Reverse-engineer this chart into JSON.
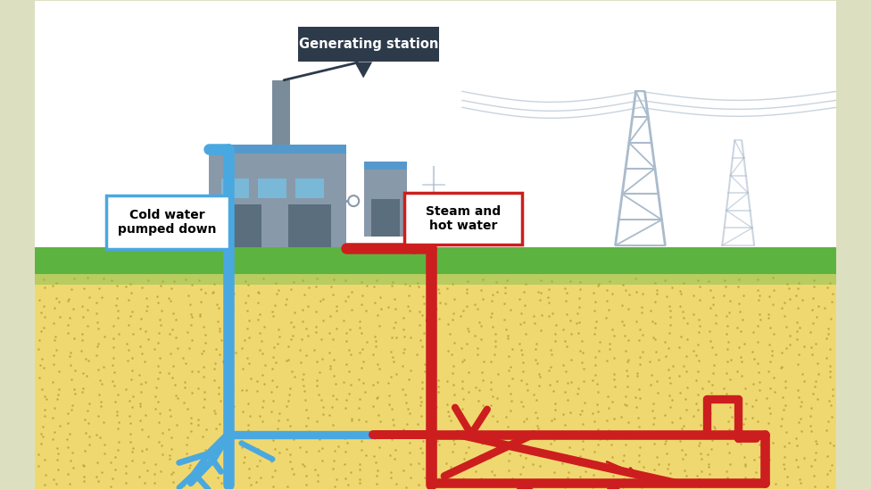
{
  "bg_outer": "#dde0c0",
  "bg_inner": "#ffffff",
  "sky_color": "#ffffff",
  "grass_color": "#5db340",
  "grass_light_color": "#b8cc60",
  "ground_color": "#f0d870",
  "ground_dot_color": "#b8a035",
  "blue_pipe": "#4aa8e0",
  "red_pipe": "#cc1e1e",
  "factory_body": "#8899aa",
  "factory_roof": "#5599cc",
  "factory_dark": "#5a6e7e",
  "factory_window": "#7ab8d8",
  "factory_chimney": "#7a8c9a",
  "tower_color": "#aabbcc",
  "wire_color": "#c0ccd8",
  "label_bg_station": "#2d3a4a",
  "label_text_station": "#ffffff",
  "cold_water_label": "Cold water\npumped down",
  "hot_water_label": "Steam and\nhot water",
  "station_label": "Generating station"
}
